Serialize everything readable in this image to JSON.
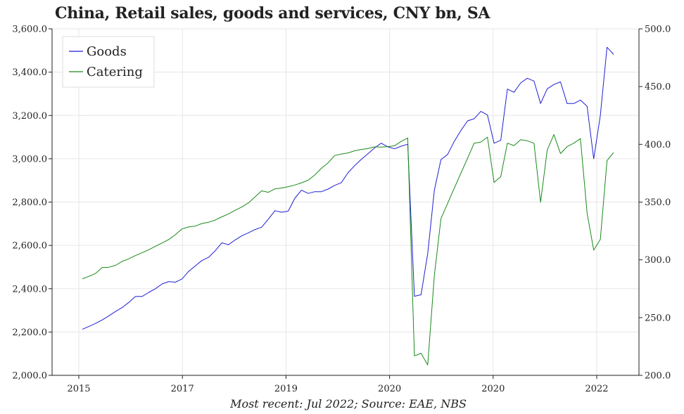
{
  "chart_data": {
    "type": "line",
    "title": "China, Retail sales, goods and services, CNY bn, SA",
    "footer": "Most recent: Jul 2022; Source: EAE, NBS",
    "left_axis": {
      "min": 2000,
      "max": 3600,
      "ticks": [
        "2,000.0",
        "2,200.0",
        "2,400.0",
        "2,600.0",
        "2,800.0",
        "3,000.0",
        "3,200.0",
        "3,400.0",
        "3,600.0"
      ]
    },
    "right_axis": {
      "min": 200,
      "max": 500,
      "ticks": [
        "200.0",
        "250.0",
        "300.0",
        "350.0",
        "400.0",
        "450.0",
        "500.0"
      ]
    },
    "x_ticks": [
      "2015",
      "2017",
      "2019",
      "2020",
      "2020",
      "2022"
    ],
    "legend_position": "top-left",
    "grid": true,
    "colors": {
      "goods": "#1f1fd6",
      "catering": "#1a8a1a"
    },
    "series": [
      {
        "name": "Goods",
        "axis": "left",
        "values": [
          2213,
          2226,
          2240,
          2256,
          2275,
          2295,
          2313,
          2337,
          2364,
          2364,
          2383,
          2400,
          2422,
          2433,
          2430,
          2445,
          2480,
          2505,
          2530,
          2545,
          2575,
          2612,
          2603,
          2625,
          2644,
          2658,
          2673,
          2684,
          2721,
          2760,
          2753,
          2758,
          2818,
          2855,
          2840,
          2848,
          2848,
          2860,
          2877,
          2890,
          2935,
          2968,
          2997,
          3023,
          3050,
          3072,
          3055,
          3046,
          3058,
          3067,
          2365,
          2372,
          2562,
          2854,
          2996,
          3020,
          3080,
          3130,
          3175,
          3185,
          3219,
          3202,
          3072,
          3085,
          3322,
          3307,
          3350,
          3372,
          3359,
          3255,
          3323,
          3343,
          3355,
          3255,
          3255,
          3271,
          3242,
          3000,
          3200,
          3515,
          3482
        ]
      },
      {
        "name": "Catering",
        "axis": "left",
        "values": [
          2446,
          2457,
          2471,
          2498,
          2499,
          2508,
          2526,
          2538,
          2553,
          2566,
          2580,
          2596,
          2611,
          2627,
          2649,
          2676,
          2685,
          2689,
          2701,
          2707,
          2717,
          2732,
          2745,
          2762,
          2777,
          2796,
          2824,
          2852,
          2845,
          2861,
          2865,
          2871,
          2879,
          2889,
          2901,
          2925,
          2956,
          2981,
          3015,
          3022,
          3027,
          3037,
          3043,
          3047,
          3055,
          3054,
          3056,
          3060,
          3080,
          3096,
          2090,
          2102,
          2048,
          2460,
          2723,
          2794,
          2864,
          2933,
          3002,
          3072,
          3077,
          3100,
          2891,
          2917,
          3072,
          3061,
          3088,
          3083,
          3072,
          2799,
          3040,
          3112,
          3024,
          3056,
          3072,
          3093,
          2749,
          2578,
          2628,
          2991,
          3029
        ]
      }
    ]
  }
}
